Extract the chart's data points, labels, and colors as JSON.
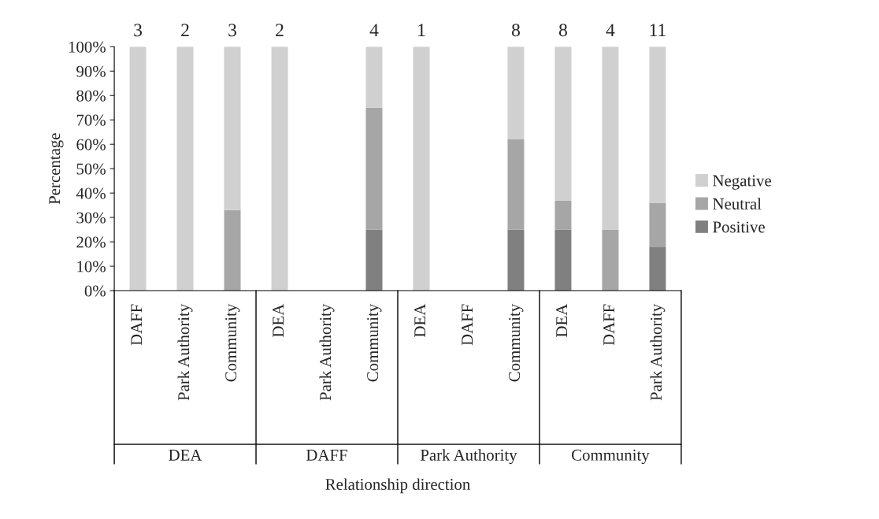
{
  "chart_data": {
    "type": "bar",
    "stacked": true,
    "xlabel": "Relationship direction",
    "ylabel": "Percentage",
    "categories": [
      "DAFF",
      "Park Authority",
      "Community",
      "DEA",
      "Park Authority",
      "Community",
      "DEA",
      "DAFF",
      "Community",
      "DEA",
      "DAFF",
      "Park Authority"
    ],
    "series": [
      {
        "name": "Positive",
        "color": "#808080",
        "values": [
          0,
          0,
          0,
          0,
          0,
          25,
          0,
          0,
          25,
          25,
          0,
          18
        ]
      },
      {
        "name": "Neutral",
        "color": "#a6a6a6",
        "values": [
          0,
          0,
          33,
          0,
          0,
          50,
          0,
          0,
          37,
          12,
          25,
          18
        ]
      },
      {
        "name": "Negative",
        "color": "#d0d0d0",
        "values": [
          100,
          100,
          67,
          100,
          0,
          25,
          100,
          0,
          38,
          63,
          75,
          64
        ]
      }
    ],
    "annotations": [
      "DEA",
      "DAFF",
      "Park Authority",
      "Community",
      "3",
      "2",
      "3",
      "2",
      "4",
      "1",
      "8",
      "8",
      "4",
      "11"
    ],
    "ylim": [
      0,
      100
    ],
    "yticks": [
      {
        "value": 0,
        "label": "0%"
      },
      {
        "value": 10,
        "label": "10%"
      },
      {
        "value": 20,
        "label": "20%"
      },
      {
        "value": 30,
        "label": "30%"
      },
      {
        "value": 40,
        "label": "40%"
      },
      {
        "value": 50,
        "label": "50%"
      },
      {
        "value": 60,
        "label": "60%"
      },
      {
        "value": 70,
        "label": "70%"
      },
      {
        "value": 80,
        "label": "80%"
      },
      {
        "value": 90,
        "label": "90%"
      },
      {
        "value": 100,
        "label": "100%"
      }
    ],
    "legend": "right",
    "grid": false
  }
}
